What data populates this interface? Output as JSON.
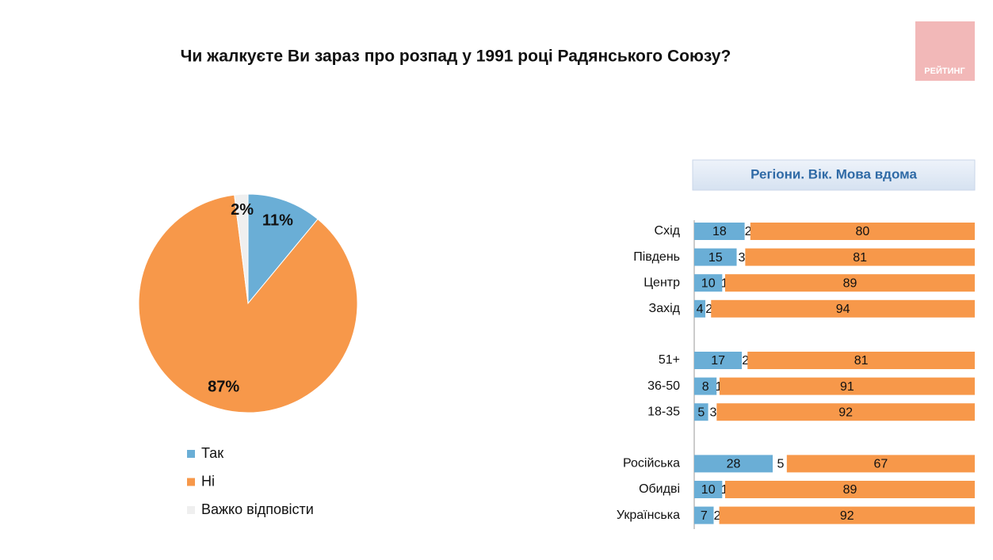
{
  "title": "Чи жалкуєте Ви зараз про розпад у 1991 році Радянського Союзу?",
  "logo": "РЕЙТИНГ",
  "chart_data": [
    {
      "type": "pie",
      "categories": [
        "Так",
        "Ні",
        "Важко відповісти"
      ],
      "values": [
        11,
        87,
        2
      ],
      "value_labels": [
        "11%",
        "87%",
        "2%"
      ],
      "colors": [
        "#6aaed6",
        "#f7984a",
        "#efefef"
      ]
    },
    {
      "type": "stacked-bar-horizontal",
      "title": "Регіони. Вік. Мова вдома",
      "categories": [
        "Схід",
        "Південь",
        "Центр",
        "Захід",
        null,
        "51+",
        "36-50",
        "18-35",
        null,
        "Російська",
        "Обидві",
        "Українська"
      ],
      "series": [
        {
          "color": "#6aaed6",
          "values": [
            18,
            15,
            10,
            4,
            null,
            17,
            8,
            5,
            null,
            28,
            10,
            7
          ]
        },
        {
          "color": "#ffffff",
          "values": [
            2,
            3,
            1,
            2,
            null,
            2,
            1,
            3,
            null,
            5,
            1,
            2
          ]
        },
        {
          "color": "#f7984a",
          "values": [
            80,
            81,
            89,
            94,
            null,
            81,
            91,
            92,
            null,
            67,
            89,
            92
          ]
        }
      ]
    }
  ]
}
